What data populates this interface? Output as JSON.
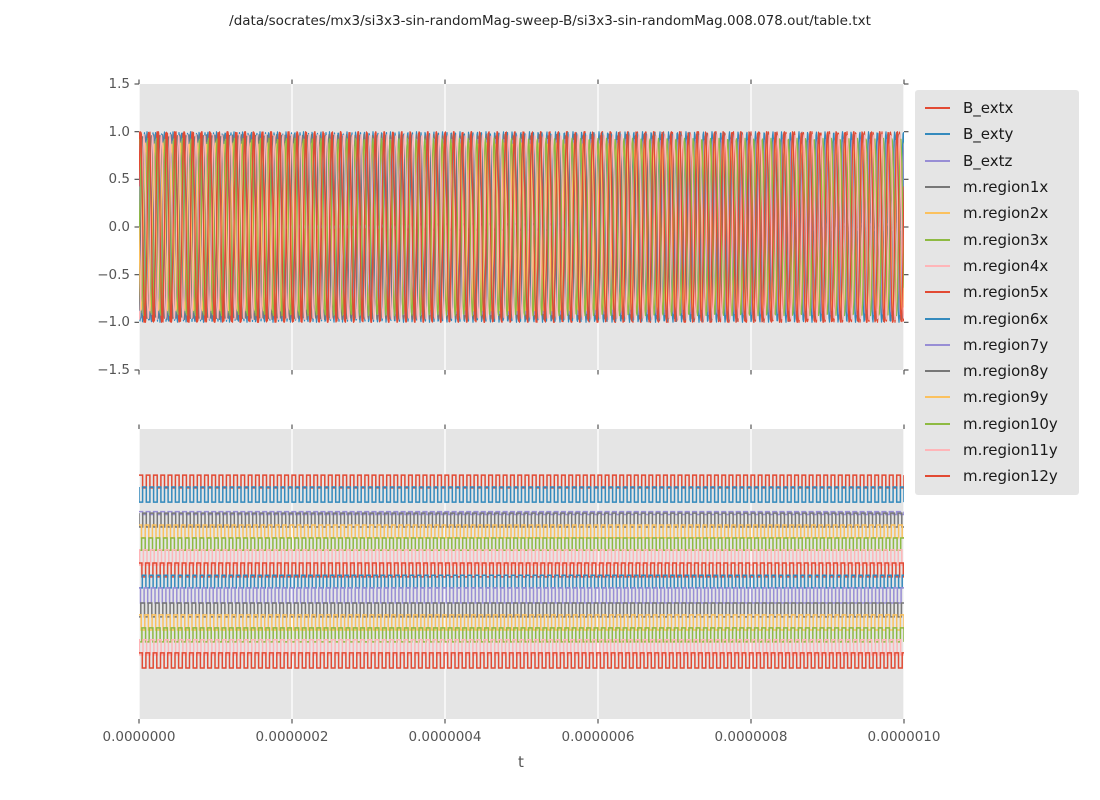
{
  "figure": {
    "title": "/data/socrates/mx3/si3x3-sin-randomMag-sweep-B/si3x3-sin-randomMag.008.078.out/table.txt"
  },
  "colors": {
    "figure_bg": "#FFFFFF",
    "axes_bg": "#E5E5E5",
    "grid": "#FFFFFF",
    "tick": "#555555",
    "title_text": "#262626",
    "legend_bg": "#E5E5E5",
    "cycle_red": "#E24A33",
    "cycle_blue": "#348ABD",
    "cycle_purple": "#988ED5",
    "cycle_gray": "#777777",
    "cycle_orange": "#FBC15E",
    "cycle_green": "#8EBA42",
    "cycle_pink": "#FFB5B8"
  },
  "legend": {
    "items": [
      {
        "label": "B_extx",
        "color": "#E24A33"
      },
      {
        "label": "B_exty",
        "color": "#348ABD"
      },
      {
        "label": "B_extz",
        "color": "#988ED5"
      },
      {
        "label": "m.region1x",
        "color": "#777777"
      },
      {
        "label": "m.region2x",
        "color": "#FBC15E"
      },
      {
        "label": "m.region3x",
        "color": "#8EBA42"
      },
      {
        "label": "m.region4x",
        "color": "#FFB5B8"
      },
      {
        "label": "m.region5x",
        "color": "#E24A33"
      },
      {
        "label": "m.region6x",
        "color": "#348ABD"
      },
      {
        "label": "m.region7y",
        "color": "#988ED5"
      },
      {
        "label": "m.region8y",
        "color": "#777777"
      },
      {
        "label": "m.region9y",
        "color": "#FBC15E"
      },
      {
        "label": "m.region10y",
        "color": "#8EBA42"
      },
      {
        "label": "m.region11y",
        "color": "#FFB5B8"
      },
      {
        "label": "m.region12y",
        "color": "#E24A33"
      }
    ]
  },
  "chart_data": [
    {
      "type": "line",
      "subplot": "top",
      "title": "",
      "xlabel": "",
      "ylabel": "",
      "xlim": [
        0,
        1e-06
      ],
      "ylim": [
        -1.5,
        1.5
      ],
      "grid": "x-only",
      "y_tick_labels": [
        "1.5",
        "1.0",
        "0.5",
        "0.0",
        "−0.5",
        "−1.0",
        "−1.5"
      ],
      "y_tick_values": [
        1.5,
        1.0,
        0.5,
        0.0,
        -0.5,
        -1.0,
        -1.5
      ],
      "x_tick_values": [
        0,
        2e-07,
        4e-07,
        6e-07,
        8e-07,
        1e-06
      ],
      "description": "All 15 series are sinusoidal oscillations of ~8.8e7 Hz over t = 0..1e-6 s, filling the band between -1 and +1",
      "series": [
        {
          "name": "B_extx",
          "color": "#E24A33",
          "waveform": "sine",
          "amplitude": 1.0,
          "cycles": 88.0,
          "phase": 0.0
        },
        {
          "name": "B_exty",
          "color": "#348ABD",
          "waveform": "sine",
          "amplitude": 1.0,
          "cycles": 88.0,
          "phase": 0.33
        },
        {
          "name": "B_extz",
          "color": "#988ED5",
          "waveform": "sine",
          "amplitude": 0.04,
          "cycles": 88.0,
          "phase": 0.0
        },
        {
          "name": "m.region1x",
          "color": "#777777",
          "waveform": "sine",
          "amplitude": 0.97,
          "cycles": 87.4,
          "phase": 0.55
        },
        {
          "name": "m.region2x",
          "color": "#FBC15E",
          "waveform": "sine",
          "amplitude": 0.86,
          "cycles": 88.6,
          "phase": 0.12
        },
        {
          "name": "m.region3x",
          "color": "#8EBA42",
          "waveform": "sine",
          "amplitude": 0.9,
          "cycles": 87.8,
          "phase": 0.42
        },
        {
          "name": "m.region4x",
          "color": "#FFB5B8",
          "waveform": "sine",
          "amplitude": 0.94,
          "cycles": 88.3,
          "phase": 0.72
        },
        {
          "name": "m.region5x",
          "color": "#E24A33",
          "waveform": "sine",
          "amplitude": 1.0,
          "cycles": 87.6,
          "phase": 0.18
        },
        {
          "name": "m.region6x",
          "color": "#348ABD",
          "waveform": "sine",
          "amplitude": 0.99,
          "cycles": 88.5,
          "phase": 0.62
        },
        {
          "name": "m.region7y",
          "color": "#988ED5",
          "waveform": "sine",
          "amplitude": 0.92,
          "cycles": 87.9,
          "phase": 0.3
        },
        {
          "name": "m.region8y",
          "color": "#777777",
          "waveform": "sine",
          "amplitude": 0.96,
          "cycles": 88.2,
          "phase": 0.82
        },
        {
          "name": "m.region9y",
          "color": "#FBC15E",
          "waveform": "sine",
          "amplitude": 0.88,
          "cycles": 87.5,
          "phase": 0.5
        },
        {
          "name": "m.region10y",
          "color": "#8EBA42",
          "waveform": "sine",
          "amplitude": 0.93,
          "cycles": 88.4,
          "phase": 0.22
        },
        {
          "name": "m.region11y",
          "color": "#FFB5B8",
          "waveform": "sine",
          "amplitude": 0.97,
          "cycles": 88.1,
          "phase": 0.68
        },
        {
          "name": "m.region12y",
          "color": "#E24A33",
          "waveform": "sine",
          "amplitude": 1.0,
          "cycles": 88.0,
          "phase": 0.07
        }
      ]
    },
    {
      "type": "line",
      "subplot": "bottom",
      "title": "",
      "xlabel": "t",
      "ylabel": "",
      "xlim": [
        0,
        1e-06
      ],
      "grid": "x-only",
      "y_tick_labels": [],
      "x_tick_labels": [
        "0.0000000",
        "0.0000002",
        "0.0000004",
        "0.0000006",
        "0.0000008",
        "0.0000010"
      ],
      "x_tick_values": [
        0,
        2e-07,
        4e-07,
        6e-07,
        8e-07,
        1e-06
      ],
      "description": "Same 15 series rendered as vertically offset square-wave bands; center_frac/half_frac are fractions of plot height from the top edge",
      "series": [
        {
          "name": "B_extx",
          "color": "#E24A33",
          "waveform": "square",
          "center_frac": 0.181,
          "half_frac": 0.022,
          "cycles": 105.0,
          "phase": 0.0
        },
        {
          "name": "B_exty",
          "color": "#348ABD",
          "waveform": "square",
          "center_frac": 0.226,
          "half_frac": 0.026,
          "cycles": 105.0,
          "phase": 0.5
        },
        {
          "name": "B_extz",
          "color": "#988ED5",
          "waveform": "square",
          "center_frac": 0.29,
          "half_frac": 0.005,
          "cycles": 105.0,
          "phase": 0.0
        },
        {
          "name": "m.region1x",
          "color": "#777777",
          "waveform": "square",
          "center_frac": 0.314,
          "half_frac": 0.024,
          "cycles": 104.3,
          "phase": 0.5
        },
        {
          "name": "m.region2x",
          "color": "#FBC15E",
          "waveform": "square",
          "center_frac": 0.353,
          "half_frac": 0.022,
          "cycles": 105.6,
          "phase": 0.15
        },
        {
          "name": "m.region3x",
          "color": "#8EBA42",
          "waveform": "square",
          "center_frac": 0.397,
          "half_frac": 0.021,
          "cycles": 104.8,
          "phase": 0.65
        },
        {
          "name": "m.region4x",
          "color": "#FFB5B8",
          "waveform": "square",
          "center_frac": 0.443,
          "half_frac": 0.026,
          "cycles": 105.4,
          "phase": 0.4
        },
        {
          "name": "m.region5x",
          "color": "#E24A33",
          "waveform": "square",
          "center_frac": 0.486,
          "half_frac": 0.024,
          "cycles": 104.5,
          "phase": 0.1
        },
        {
          "name": "m.region6x",
          "color": "#348ABD",
          "waveform": "square",
          "center_frac": 0.526,
          "half_frac": 0.022,
          "cycles": 105.7,
          "phase": 0.55
        },
        {
          "name": "m.region7y",
          "color": "#988ED5",
          "waveform": "square",
          "center_frac": 0.574,
          "half_frac": 0.026,
          "cycles": 105.1,
          "phase": 0.3
        },
        {
          "name": "m.region8y",
          "color": "#777777",
          "waveform": "square",
          "center_frac": 0.624,
          "half_frac": 0.024,
          "cycles": 104.6,
          "phase": 0.75
        },
        {
          "name": "m.region9y",
          "color": "#FBC15E",
          "waveform": "square",
          "center_frac": 0.667,
          "half_frac": 0.026,
          "cycles": 105.3,
          "phase": 0.2
        },
        {
          "name": "m.region10y",
          "color": "#8EBA42",
          "waveform": "square",
          "center_frac": 0.71,
          "half_frac": 0.024,
          "cycles": 104.9,
          "phase": 0.6
        },
        {
          "name": "m.region11y",
          "color": "#FFB5B8",
          "waveform": "square",
          "center_frac": 0.753,
          "half_frac": 0.026,
          "cycles": 105.5,
          "phase": 0.45
        },
        {
          "name": "m.region12y",
          "color": "#E24A33",
          "waveform": "square",
          "center_frac": 0.798,
          "half_frac": 0.026,
          "cycles": 105.2,
          "phase": 0.05
        }
      ]
    }
  ]
}
